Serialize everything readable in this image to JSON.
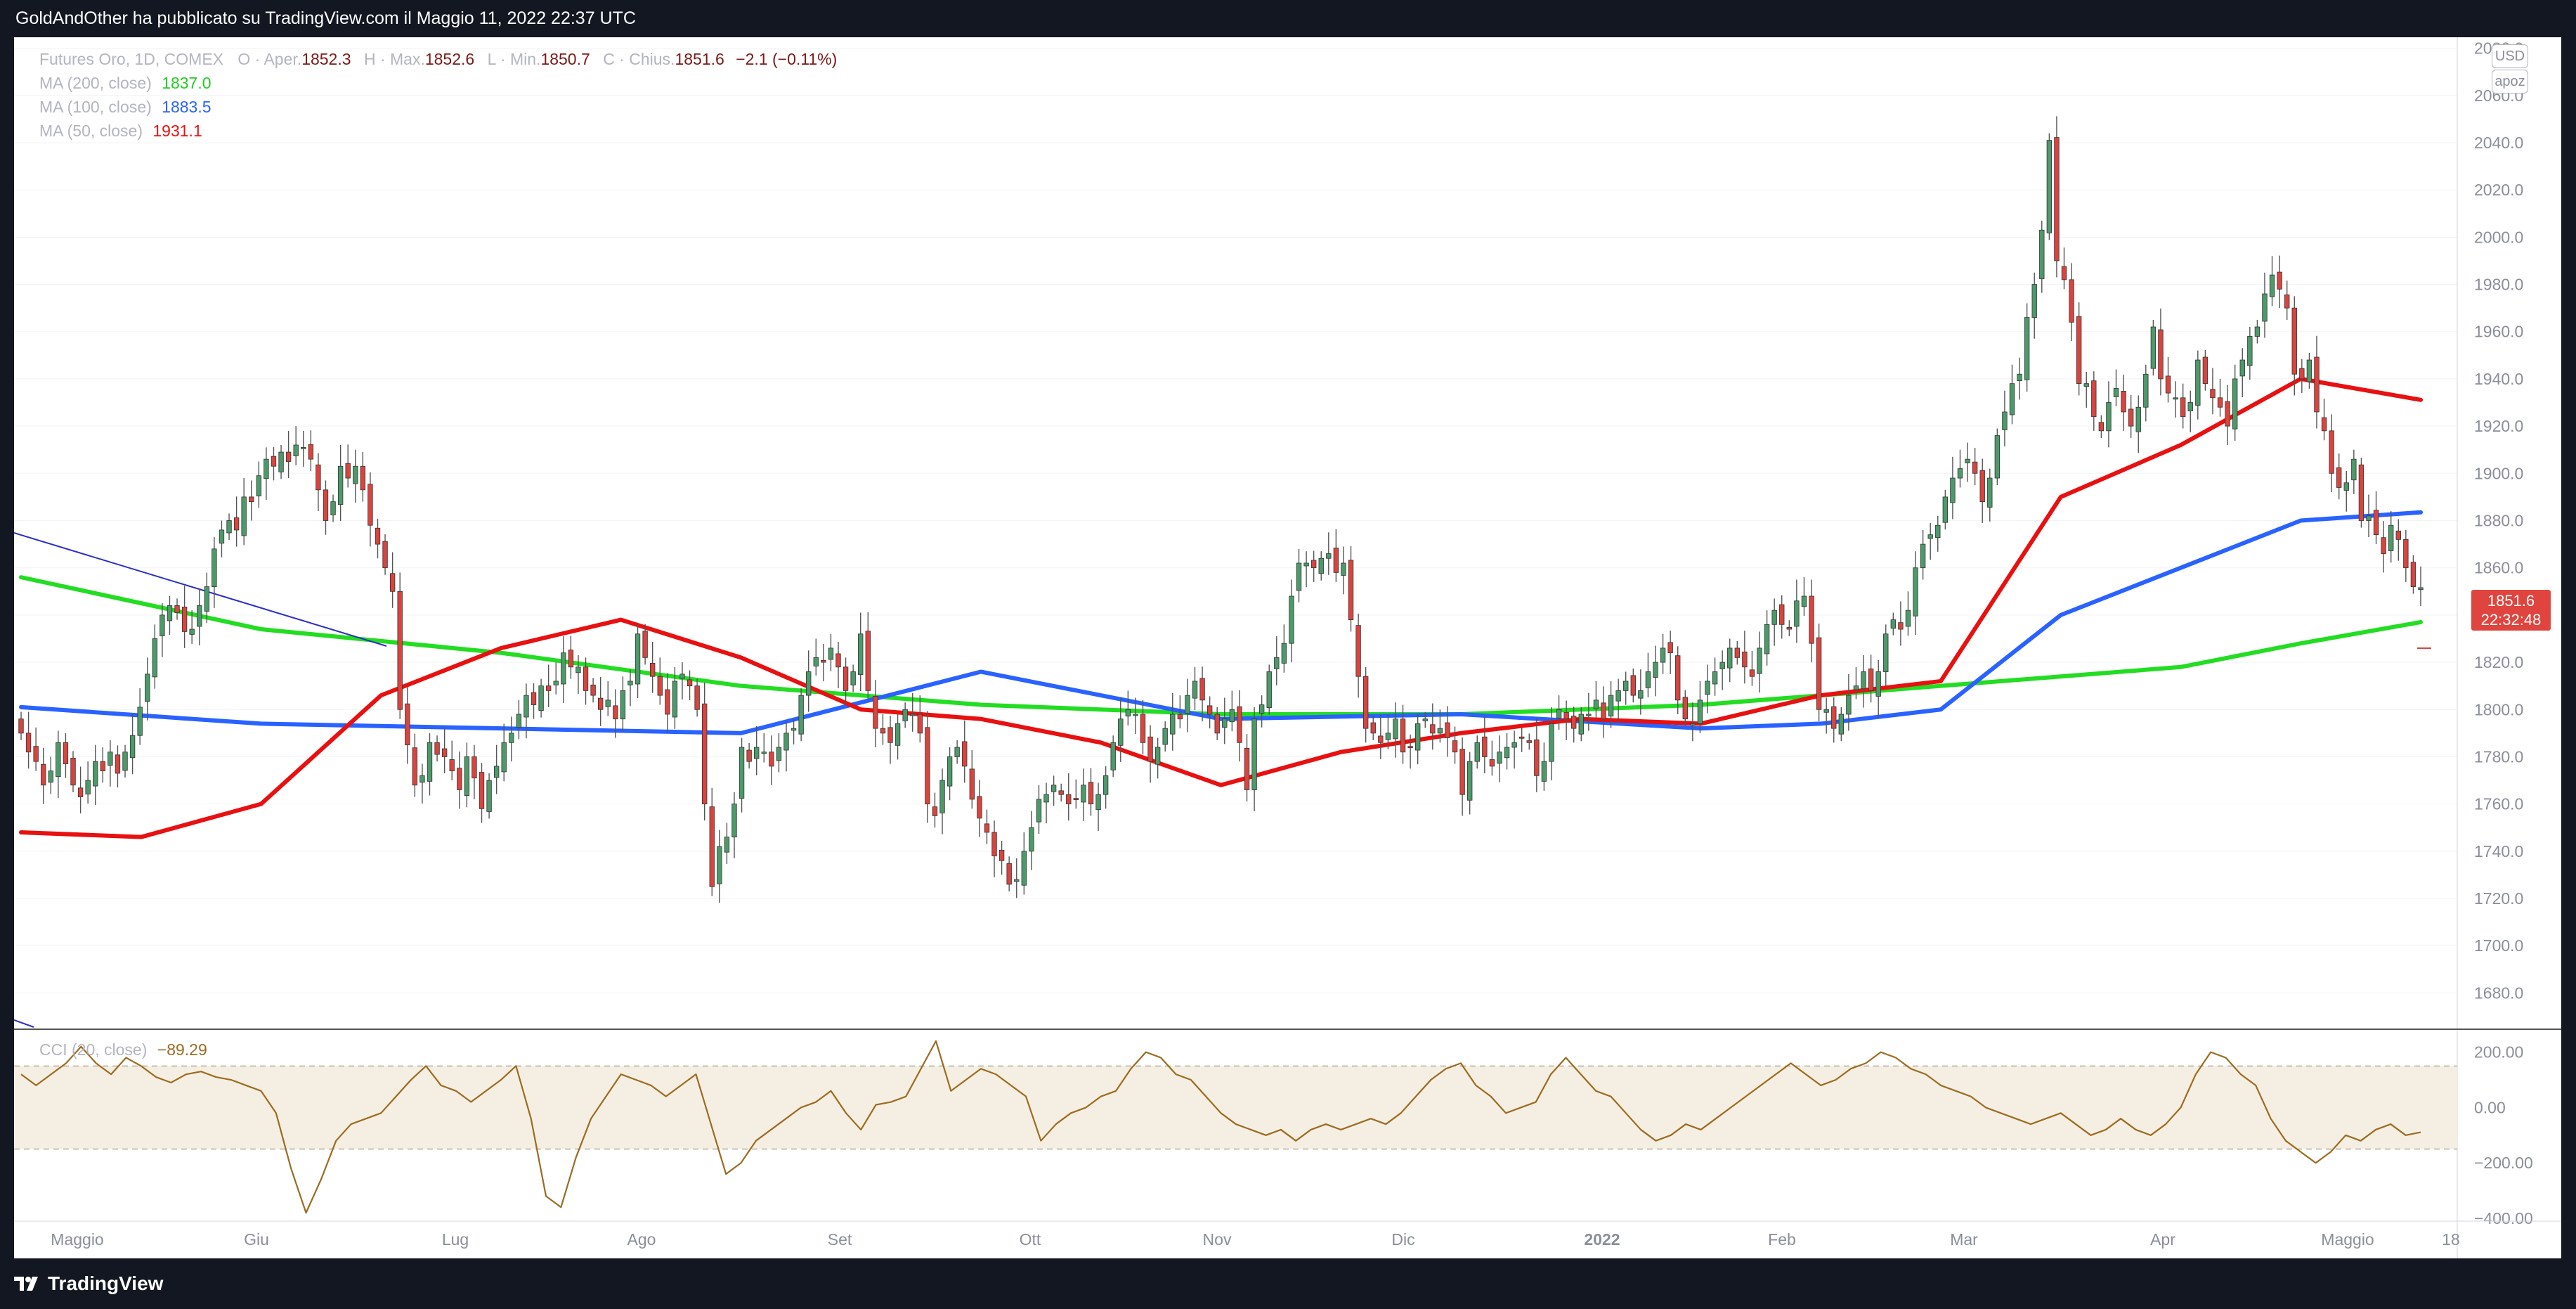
{
  "header": {
    "publisher_text": "GoldAndOther ha pubblicato su TradingView.com il Maggio 11, 2022 22:37 UTC"
  },
  "footer": {
    "logo_text": "TradingView"
  },
  "legend": {
    "symbol": "Futures Oro, 1D, COMEX",
    "ohlc": [
      {
        "label": "O",
        "name": "Aper.",
        "value": "1852.3"
      },
      {
        "label": "H",
        "name": "Max.",
        "value": "1852.6"
      },
      {
        "label": "L",
        "name": "Min.",
        "value": "1850.7"
      },
      {
        "label": "C",
        "name": "Chius.",
        "value": "1851.6"
      }
    ],
    "change": "−2.1 (−0.11%)",
    "ma200": {
      "label": "MA (200, close)",
      "value": "1837.0",
      "color": "#22dd22"
    },
    "ma100": {
      "label": "MA (100, close)",
      "value": "1883.5",
      "color": "#2962ff"
    },
    "ma50": {
      "label": "MA (50, close)",
      "value": "1931.1",
      "color": "#e81010"
    },
    "cci": {
      "label": "CCI (20, close)",
      "value": "−89.29",
      "color": "#9c6b21"
    }
  },
  "scale": {
    "currency": "USD",
    "mode": "apoz"
  },
  "last_price": {
    "value": "1851.6",
    "countdown": "22:32:48",
    "color": "#e0443e"
  },
  "chart_data": {
    "type": "candlestick",
    "title": "Futures Oro, 1D, COMEX",
    "ylim": [
      1670,
      2090
    ],
    "y_ticks": [
      "1680.0",
      "1700.0",
      "1720.0",
      "1740.0",
      "1760.0",
      "1780.0",
      "1800.0",
      "1820.0",
      "1840.0",
      "1860.0",
      "1880.0",
      "1900.0",
      "1920.0",
      "1940.0",
      "1960.0",
      "1980.0",
      "2000.0",
      "2020.0",
      "2040.0",
      "2060.0",
      "2080.0"
    ],
    "x_ticks": [
      "Maggio",
      "Giu",
      "Lug",
      "Ago",
      "Set",
      "Ott",
      "Nov",
      "Dic",
      "2022",
      "Feb",
      "Mar",
      "Apr",
      "Maggio",
      "18"
    ],
    "up_color": "#4c9a6a",
    "down_color": "#d9443e",
    "candles_close": [
      1790,
      1782,
      1778,
      1768,
      1774,
      1786,
      1777,
      1768,
      1763,
      1770,
      1778,
      1774,
      1782,
      1773,
      1782,
      1789,
      1801,
      1815,
      1830,
      1840,
      1844,
      1841,
      1833,
      1834,
      1844,
      1852,
      1868,
      1876,
      1880,
      1876,
      1890,
      1888,
      1899,
      1906,
      1903,
      1909,
      1905,
      1912,
      1911,
      1906,
      1893,
      1880,
      1888,
      1903,
      1898,
      1903,
      1893,
      1878,
      1870,
      1860,
      1850,
      1800,
      1785,
      1768,
      1772,
      1786,
      1781,
      1780,
      1774,
      1766,
      1780,
      1771,
      1758,
      1770,
      1776,
      1786,
      1790,
      1798,
      1806,
      1802,
      1810,
      1808,
      1812,
      1824,
      1818,
      1818,
      1808,
      1806,
      1800,
      1804,
      1796,
      1808,
      1812,
      1832,
      1822,
      1814,
      1806,
      1798,
      1812,
      1815,
      1810,
      1800,
      1760,
      1725,
      1742,
      1746,
      1760,
      1784,
      1778,
      1784,
      1782,
      1776,
      1784,
      1790,
      1792,
      1806,
      1816,
      1822,
      1820,
      1826,
      1818,
      1808,
      1816,
      1832,
      1808,
      1792,
      1790,
      1786,
      1794,
      1800,
      1798,
      1790,
      1760,
      1755,
      1770,
      1780,
      1784,
      1776,
      1762,
      1754,
      1748,
      1738,
      1736,
      1726,
      1728,
      1740,
      1750,
      1762,
      1764,
      1768,
      1764,
      1760,
      1762,
      1768,
      1760,
      1764,
      1772,
      1786,
      1796,
      1800,
      1798,
      1786,
      1778,
      1784,
      1792,
      1798,
      1796,
      1806,
      1812,
      1804,
      1798,
      1790,
      1796,
      1800,
      1786,
      1766,
      1796,
      1802,
      1816,
      1822,
      1828,
      1848,
      1862,
      1862,
      1860,
      1864,
      1866,
      1858,
      1862,
      1838,
      1814,
      1792,
      1790,
      1786,
      1790,
      1796,
      1782,
      1784,
      1794,
      1796,
      1790,
      1792,
      1788,
      1782,
      1764,
      1778,
      1786,
      1780,
      1776,
      1782,
      1784,
      1786,
      1788,
      1786,
      1772,
      1778,
      1794,
      1800,
      1796,
      1792,
      1798,
      1798,
      1804,
      1796,
      1806,
      1808,
      1812,
      1806,
      1808,
      1816,
      1820,
      1826,
      1824,
      1804,
      1796,
      1794,
      1804,
      1812,
      1816,
      1820,
      1826,
      1822,
      1818,
      1814,
      1826,
      1836,
      1842,
      1836,
      1834,
      1846,
      1848,
      1828,
      1800,
      1800,
      1792,
      1798,
      1806,
      1810,
      1816,
      1808,
      1816,
      1832,
      1838,
      1834,
      1842,
      1860,
      1870,
      1874,
      1878,
      1890,
      1898,
      1902,
      1906,
      1900,
      1888,
      1898,
      1916,
      1926,
      1938,
      1942,
      1966,
      1980,
      2003,
      2041,
      1990,
      1982,
      1964,
      1938,
      1938,
      1924,
      1918,
      1930,
      1936,
      1926,
      1920,
      1928,
      1942,
      1962,
      1940,
      1934,
      1932,
      1924,
      1930,
      1948,
      1938,
      1932,
      1928,
      1920,
      1940,
      1948,
      1958,
      1962,
      1976,
      1984,
      1978,
      1970,
      1942,
      1940,
      1948,
      1926,
      1918,
      1900,
      1894,
      1896,
      1906,
      1880,
      1882,
      1874,
      1866,
      1878,
      1872,
      1860,
      1852,
      1851.6
    ],
    "series": [
      {
        "name": "MA (200, close)",
        "color": "#22dd22",
        "x": [
          0,
          0.1,
          0.2,
          0.3,
          0.4,
          0.5,
          0.6,
          0.7,
          0.75,
          0.8,
          0.85,
          0.9,
          0.95,
          1.0
        ],
        "values": [
          1856,
          1834,
          1824,
          1810,
          1802,
          1798,
          1798,
          1802,
          1806,
          1810,
          1814,
          1818,
          1828,
          1837
        ]
      },
      {
        "name": "MA (100, close)",
        "color": "#2962ff",
        "x": [
          0,
          0.1,
          0.2,
          0.3,
          0.4,
          0.5,
          0.6,
          0.7,
          0.75,
          0.8,
          0.85,
          0.9,
          0.95,
          1.0
        ],
        "values": [
          1801,
          1794,
          1792,
          1790,
          1816,
          1796,
          1798,
          1792,
          1794,
          1800,
          1840,
          1860,
          1880,
          1883.5
        ]
      },
      {
        "name": "MA (50, close)",
        "color": "#e81010",
        "x": [
          0,
          0.05,
          0.1,
          0.15,
          0.2,
          0.25,
          0.3,
          0.35,
          0.4,
          0.45,
          0.5,
          0.55,
          0.6,
          0.65,
          0.7,
          0.75,
          0.8,
          0.85,
          0.9,
          0.95,
          1.0
        ],
        "values": [
          1748,
          1746,
          1760,
          1806,
          1826,
          1838,
          1822,
          1800,
          1796,
          1786,
          1768,
          1782,
          1790,
          1796,
          1794,
          1806,
          1812,
          1890,
          1912,
          1940,
          1931.1
        ]
      }
    ],
    "cci": {
      "name": "CCI (20, close)",
      "ylim": [
        -400,
        260
      ],
      "y_ticks": [
        "200.00",
        "0.00",
        "−200.00",
        "−400.00"
      ],
      "band": [
        -150,
        150
      ],
      "values": [
        120,
        80,
        120,
        160,
        220,
        160,
        120,
        180,
        150,
        110,
        90,
        120,
        130,
        110,
        100,
        80,
        60,
        -20,
        -220,
        -380,
        -260,
        -120,
        -60,
        -40,
        -20,
        40,
        100,
        150,
        80,
        60,
        20,
        60,
        100,
        150,
        -40,
        -320,
        -360,
        -180,
        -40,
        40,
        120,
        100,
        80,
        40,
        80,
        120,
        -60,
        -240,
        -200,
        -120,
        -80,
        -40,
        0,
        20,
        60,
        -20,
        -80,
        10,
        20,
        40,
        140,
        240,
        60,
        100,
        140,
        120,
        80,
        40,
        -120,
        -60,
        -20,
        0,
        40,
        60,
        140,
        200,
        180,
        120,
        100,
        40,
        -20,
        -60,
        -80,
        -100,
        -80,
        -120,
        -80,
        -60,
        -80,
        -60,
        -40,
        -60,
        -20,
        40,
        100,
        140,
        160,
        80,
        40,
        -20,
        0,
        20,
        120,
        180,
        120,
        60,
        40,
        -20,
        -80,
        -120,
        -100,
        -60,
        -80,
        -40,
        0,
        40,
        80,
        120,
        160,
        120,
        80,
        100,
        140,
        160,
        200,
        180,
        140,
        120,
        80,
        60,
        40,
        0,
        -20,
        -40,
        -60,
        -40,
        -20,
        -60,
        -100,
        -80,
        -40,
        -80,
        -100,
        -60,
        0,
        120,
        200,
        180,
        120,
        80,
        -40,
        -120,
        -160,
        -200,
        -160,
        -100,
        -120,
        -80,
        -60,
        -100,
        -89.29
      ]
    }
  }
}
